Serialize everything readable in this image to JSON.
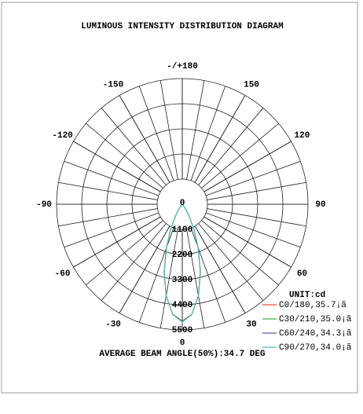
{
  "chart_data": {
    "type": "polar",
    "title": "LUMINOUS INTENSITY DISTRIBUTION DIAGRAM",
    "footer": "AVERAGE BEAM ANGLE(50%):34.7 DEG",
    "unit_label": "UNIT:cd",
    "x": [
      -60,
      -55,
      -50,
      -45,
      -40,
      -35,
      -30,
      -25,
      -20,
      -15,
      -10,
      -5,
      0,
      5,
      10,
      15,
      20,
      25,
      30,
      35,
      40,
      45,
      50,
      55,
      60
    ],
    "series": [
      {
        "name": "C0/180,35.7¡ã",
        "color": "#e8503a",
        "values": [
          0,
          3,
          10,
          31,
          102,
          275,
          622,
          1214,
          2055,
          3075,
          4078,
          4824,
          5100,
          4824,
          4078,
          3075,
          2055,
          1214,
          622,
          275,
          102,
          31,
          10,
          3,
          0
        ]
      },
      {
        "name": "C30/210,35.0¡ã",
        "color": "#3cb44b",
        "values": [
          0,
          3,
          9,
          29,
          98,
          268,
          610,
          1195,
          2035,
          3060,
          4070,
          4830,
          5120,
          4830,
          4070,
          3060,
          2035,
          1195,
          610,
          268,
          98,
          29,
          9,
          3,
          0
        ]
      },
      {
        "name": "C60/240,34.3¡ã",
        "color": "#5a5aa8",
        "values": [
          0,
          2,
          8,
          27,
          92,
          258,
          592,
          1170,
          2010,
          3040,
          4060,
          4835,
          5140,
          4835,
          4060,
          3040,
          2010,
          1170,
          592,
          258,
          92,
          27,
          8,
          2,
          0
        ]
      },
      {
        "name": "C90/270,34.0¡ã",
        "color": "#40c0c8",
        "values": [
          0,
          2,
          8,
          26,
          90,
          252,
          585,
          1160,
          2000,
          3035,
          4058,
          4840,
          5160,
          4840,
          4058,
          3035,
          2000,
          1160,
          585,
          252,
          90,
          26,
          8,
          2,
          0
        ]
      }
    ],
    "rlim": [
      0,
      5500
    ],
    "rticks": [
      0,
      1100,
      2200,
      3300,
      4400,
      5500
    ],
    "thetaticks": [
      {
        "value": 180,
        "label": "-/+180"
      },
      -150,
      150,
      -120,
      120,
      -90,
      90,
      -60,
      60,
      -30,
      30,
      0
    ]
  }
}
